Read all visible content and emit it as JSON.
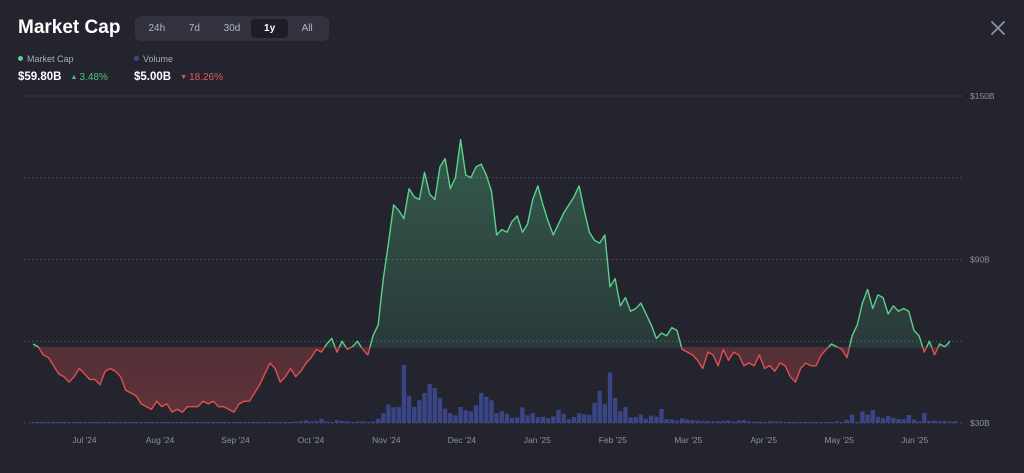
{
  "header": {
    "title": "Market Cap",
    "tabs": [
      {
        "label": "24h",
        "active": false
      },
      {
        "label": "7d",
        "active": false
      },
      {
        "label": "30d",
        "active": false
      },
      {
        "label": "1y",
        "active": true
      },
      {
        "label": "All",
        "active": false
      }
    ],
    "close_icon": "close-icon"
  },
  "legend": {
    "market_cap": {
      "label": "Market Cap",
      "value": "$59.80B",
      "change": "3.48%",
      "direction": "up",
      "color": "#5ad18b"
    },
    "volume": {
      "label": "Volume",
      "value": "$5.00B",
      "change": "18.26%",
      "direction": "down",
      "color": "#3c4a8c"
    }
  },
  "colors": {
    "up": "#5ad18b",
    "down": "#e0504f",
    "volume": "#3d4b93",
    "background": "#23242e"
  },
  "chart_data": {
    "type": "area",
    "x_tick_labels": [
      "Jul '24",
      "Aug '24",
      "Sep '24",
      "Oct '24",
      "Nov '24",
      "Dec '24",
      "Jan '25",
      "Feb '25",
      "Mar '25",
      "Apr '25",
      "May '25",
      "Jun '25"
    ],
    "y_tick_labels": [
      "$150B",
      "$90B",
      "$30B"
    ],
    "ylim": [
      30,
      150
    ],
    "baseline": 57.8,
    "grid": true,
    "series": [
      {
        "name": "Market Cap",
        "values": [
          59,
          58,
          55,
          54,
          51,
          48,
          47,
          45,
          47,
          50,
          48,
          46,
          46,
          44,
          49,
          50,
          49,
          47,
          42,
          41,
          40,
          37,
          36,
          35,
          38,
          36,
          37,
          34,
          35,
          34,
          36,
          36,
          36,
          38,
          37,
          38,
          36,
          36,
          35,
          34,
          37,
          38,
          38,
          41,
          44,
          48,
          52,
          50,
          45,
          47,
          50,
          47,
          49,
          52,
          54,
          57,
          56,
          59,
          61,
          56,
          60,
          57,
          58,
          60,
          57,
          55,
          62,
          66,
          83,
          96,
          110,
          108,
          105,
          116,
          113,
          112,
          122,
          114,
          112,
          124,
          127,
          116,
          120,
          134,
          121,
          120,
          124,
          125,
          121,
          115,
          99,
          101,
          100,
          104,
          106,
          100,
          103,
          112,
          117,
          110,
          104,
          99,
          103,
          107,
          110,
          113,
          117,
          108,
          100,
          97,
          96,
          99,
          80,
          83,
          73,
          76,
          71,
          72,
          74,
          70,
          66,
          61,
          63,
          62,
          65,
          64,
          57,
          56,
          55,
          53,
          50,
          56,
          55,
          51,
          57,
          53,
          56,
          55,
          51,
          52,
          51,
          55,
          50,
          51,
          49,
          52,
          51,
          47,
          45,
          50,
          52,
          51,
          51,
          55,
          57,
          59,
          58,
          57,
          54,
          62,
          66,
          74,
          79,
          72,
          77,
          76,
          70,
          73,
          71,
          72,
          71,
          64,
          62,
          56,
          60,
          55,
          59,
          58,
          60
        ]
      },
      {
        "name": "Volume",
        "values": [
          0.3,
          0.3,
          0.3,
          0.3,
          0.3,
          0.3,
          0.3,
          0.3,
          0.3,
          0.3,
          0.3,
          0.3,
          0.3,
          0.3,
          0.3,
          0.3,
          0.3,
          0.3,
          0.3,
          0.3,
          0.3,
          0.3,
          0.3,
          0.3,
          0.3,
          0.3,
          0.3,
          0.3,
          0.3,
          0.3,
          0.3,
          0.3,
          0.3,
          0.3,
          0.3,
          0.3,
          0.3,
          0.3,
          0.3,
          0.3,
          0.3,
          0.3,
          0.3,
          0.3,
          0.3,
          0.3,
          0.3,
          0.3,
          0.3,
          0.3,
          0.3,
          0.4,
          0.5,
          0.8,
          0.5,
          0.6,
          1.2,
          0.4,
          0.3,
          0.8,
          0.6,
          0.5,
          0.3,
          0.4,
          0.5,
          0.3,
          0.4,
          1.2,
          2.8,
          5.3,
          4.5,
          4.6,
          16.6,
          7.8,
          4.6,
          6.5,
          8.6,
          11.2,
          10.0,
          7.2,
          4.1,
          2.8,
          2.2,
          4.6,
          3.6,
          3.3,
          5.1,
          8.6,
          7.5,
          6.5,
          2.8,
          3.4,
          2.6,
          1.5,
          1.6,
          4.5,
          2.2,
          2.8,
          1.7,
          1.8,
          1.4,
          1.9,
          3.8,
          2.6,
          1.1,
          1.7,
          2.8,
          2.5,
          2.3,
          5.8,
          9.2,
          5.5,
          14.5,
          7.2,
          3.4,
          4.6,
          1.6,
          1.7,
          2.4,
          1.2,
          2.1,
          1.8,
          4.0,
          1.1,
          1.0,
          0.7,
          1.3,
          1.0,
          0.8,
          0.7,
          0.5,
          0.6,
          0.5,
          0.5,
          0.6,
          0.7,
          0.4,
          0.7,
          0.8,
          0.5,
          0.4,
          0.4,
          0.3,
          0.5,
          0.4,
          0.4,
          0.3,
          0.3,
          0.3,
          0.3,
          0.3,
          0.3,
          0.3,
          0.3,
          0.3,
          0.3,
          0.5,
          0.3,
          0.9,
          2.4,
          0.3,
          3.3,
          2.4,
          3.7,
          1.8,
          1.4,
          2.0,
          1.5,
          1.2,
          1.1,
          2.3,
          1.0,
          0.5,
          2.9,
          0.6,
          0.7,
          0.4,
          0.6,
          0.4,
          0.5
        ]
      }
    ]
  }
}
